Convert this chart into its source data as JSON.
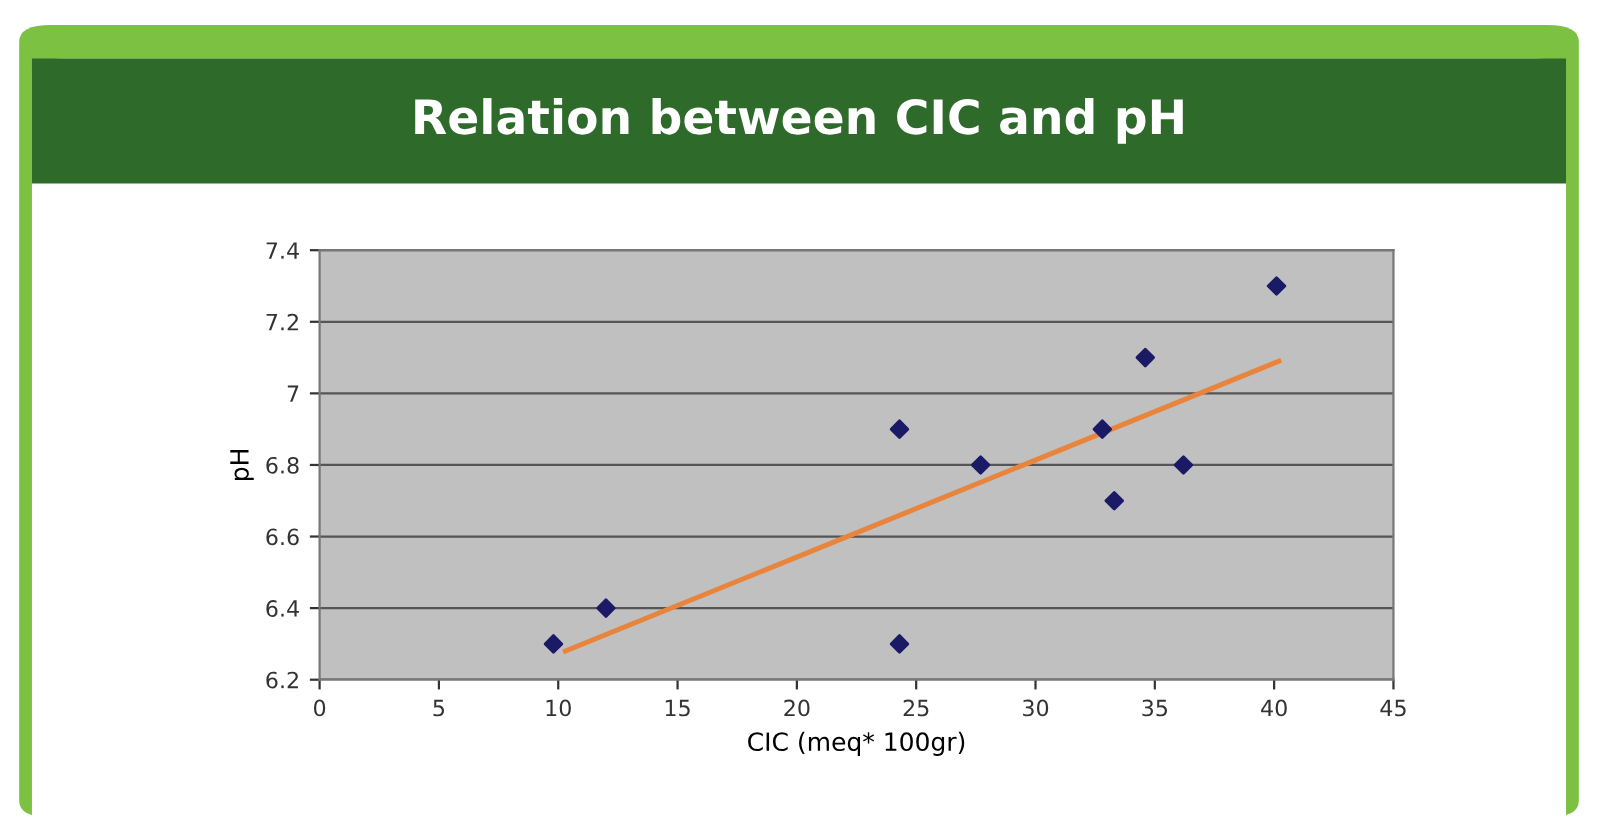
{
  "chart_data": {
    "type": "scatter",
    "title": "Relation between CIC and pH",
    "xlabel": "CIC (meq* 100gr)",
    "ylabel": "pH",
    "x": [
      9.8,
      12.0,
      24.3,
      24.3,
      27.7,
      32.8,
      33.3,
      34.6,
      36.2,
      40.1
    ],
    "series": [
      {
        "color": "#1a1a66",
        "marker": "diamond",
        "values": [
          6.3,
          6.4,
          6.9,
          6.3,
          6.8,
          6.9,
          6.7,
          7.1,
          6.8,
          7.3
        ]
      },
      {
        "type": "line",
        "color": "#e8843c",
        "x": [
          10.3,
          40.2
        ],
        "values": [
          6.28,
          7.09
        ]
      }
    ],
    "xlim": [
      0,
      45
    ],
    "xticks": [
      0,
      5,
      10,
      15,
      20,
      25,
      30,
      35,
      40,
      45
    ],
    "ylim": [
      6.2,
      7.4
    ],
    "yticks": [
      {
        "value": 6.2,
        "label": "6.2"
      },
      {
        "value": 6.4,
        "label": "6.4"
      },
      {
        "value": 6.6,
        "label": "6.6"
      },
      {
        "value": 6.8,
        "label": "6.8"
      },
      {
        "value": 7.0,
        "label": "7"
      },
      {
        "value": 7.2,
        "label": "7.2"
      },
      {
        "value": 7.4,
        "label": "7.4"
      }
    ],
    "grid": "y"
  }
}
